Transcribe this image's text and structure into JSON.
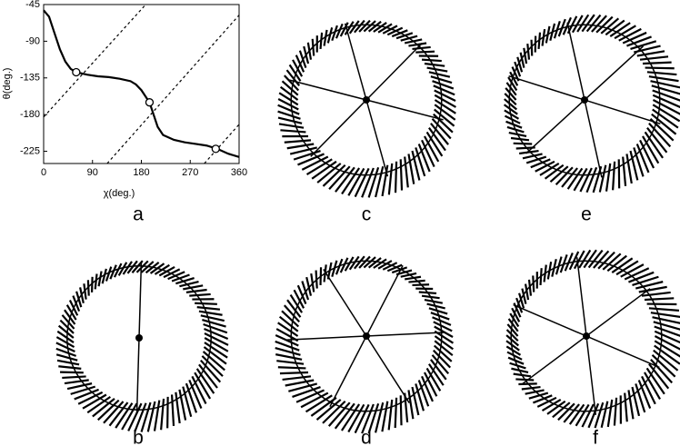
{
  "chart_data": {
    "type": "line",
    "xlabel": "χ(deg.)",
    "ylabel": "θ(deg.)",
    "xlim": [
      0,
      360
    ],
    "xticks": [
      0,
      90,
      180,
      270,
      360
    ],
    "ylim": [
      -240,
      -45
    ],
    "yticks": [
      -45,
      -90,
      -135,
      -180,
      -225
    ],
    "series": [
      {
        "color": "#000000",
        "style": "solid",
        "x": [
          0,
          10,
          20,
          30,
          40,
          50,
          60,
          80,
          100,
          120,
          140,
          160,
          170,
          180,
          190,
          195,
          200,
          210,
          220,
          240,
          260,
          280,
          300,
          320,
          340,
          360
        ],
        "values": [
          -52,
          -60,
          -80,
          -100,
          -115,
          -124,
          -128,
          -131,
          -133,
          -134,
          -136,
          -139,
          -143,
          -150,
          -160,
          -165,
          -175,
          -195,
          -205,
          -211,
          -214,
          -216,
          -218,
          -222,
          -228,
          -232
        ]
      },
      {
        "color": "#000000",
        "style": "dashed",
        "x": [
          0,
          188
        ],
        "values": [
          -183,
          -45
        ]
      },
      {
        "color": "#000000",
        "style": "dashed",
        "x": [
          117,
          360
        ],
        "values": [
          -240,
          -58
        ]
      },
      {
        "color": "#000000",
        "style": "dashed",
        "x": [
          296,
          360
        ],
        "values": [
          -240,
          -192
        ]
      },
      {
        "color": "#000000",
        "style": "markers",
        "x": [
          60,
          195,
          317
        ],
        "values": [
          -128,
          -165,
          -222
        ]
      }
    ]
  },
  "panel_labels": [
    "a",
    "b",
    "c",
    "d",
    "e",
    "f"
  ]
}
